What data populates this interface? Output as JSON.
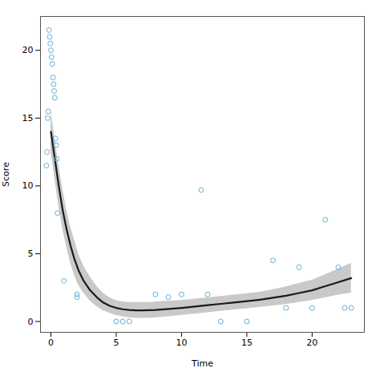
{
  "chart_data": {
    "type": "scatter",
    "xlabel": "Time",
    "ylabel": "Score",
    "xlim": [
      -0.8,
      24.0
    ],
    "ylim": [
      -0.8,
      22.5
    ],
    "xticks": [
      0,
      5,
      10,
      15,
      20
    ],
    "yticks": [
      0,
      5,
      10,
      15,
      20
    ],
    "grid": false,
    "series": [
      {
        "type": "band",
        "color": "#c0c0c0",
        "x": [
          0.0,
          0.3,
          0.6,
          0.9,
          1.2,
          1.5,
          1.8,
          2.1,
          2.5,
          3.0,
          3.5,
          4.0,
          4.5,
          5.0,
          5.5,
          6.0,
          6.5,
          7.0,
          7.5,
          8.0,
          9.0,
          10.0,
          11.0,
          12.0,
          13.0,
          14.0,
          15.0,
          16.0,
          17.0,
          18.0,
          19.0,
          20.0,
          21.0,
          22.0,
          23.0
        ],
        "lower": [
          12.5,
          10.5,
          8.5,
          6.8,
          5.5,
          4.3,
          3.4,
          2.7,
          2.1,
          1.5,
          1.1,
          0.8,
          0.6,
          0.45,
          0.35,
          0.28,
          0.24,
          0.24,
          0.25,
          0.27,
          0.35,
          0.45,
          0.55,
          0.65,
          0.75,
          0.85,
          0.95,
          1.05,
          1.15,
          1.25,
          1.4,
          1.55,
          1.75,
          1.95,
          2.1
        ],
        "upper": [
          15.5,
          13.5,
          11.5,
          9.8,
          8.2,
          7.0,
          6.0,
          5.0,
          4.1,
          3.3,
          2.6,
          2.1,
          1.75,
          1.55,
          1.45,
          1.4,
          1.4,
          1.4,
          1.4,
          1.45,
          1.5,
          1.55,
          1.65,
          1.75,
          1.85,
          1.95,
          2.05,
          2.15,
          2.35,
          2.55,
          2.8,
          3.05,
          3.45,
          3.85,
          4.3
        ]
      },
      {
        "type": "line",
        "color": "#1a1a1a",
        "line_style": "solid",
        "x": [
          0.0,
          0.3,
          0.6,
          0.9,
          1.2,
          1.5,
          1.8,
          2.1,
          2.5,
          3.0,
          3.5,
          4.0,
          4.5,
          5.0,
          5.5,
          6.0,
          6.5,
          7.0,
          7.5,
          8.0,
          9.0,
          10.0,
          11.0,
          12.0,
          13.0,
          14.0,
          15.0,
          16.0,
          17.0,
          18.0,
          19.0,
          20.0,
          21.0,
          22.0,
          23.0
        ],
        "values": [
          14.0,
          12.0,
          10.0,
          8.2,
          6.8,
          5.6,
          4.6,
          3.8,
          3.0,
          2.3,
          1.8,
          1.4,
          1.15,
          1.0,
          0.9,
          0.85,
          0.82,
          0.82,
          0.83,
          0.85,
          0.92,
          1.0,
          1.1,
          1.2,
          1.3,
          1.4,
          1.5,
          1.6,
          1.75,
          1.9,
          2.1,
          2.3,
          2.6,
          2.9,
          3.2
        ]
      },
      {
        "type": "scatter",
        "color": "#6aaed6",
        "marker": "open_circle",
        "x": [
          -0.15,
          -0.1,
          -0.05,
          0.0,
          0.05,
          0.1,
          0.15,
          0.2,
          0.25,
          0.3,
          -0.2,
          -0.25,
          0.35,
          0.4,
          -0.3,
          0.45,
          -0.35,
          0.5,
          1.0,
          2.0,
          2.0,
          5.0,
          5.5,
          6.0,
          8.0,
          9.0,
          10.0,
          11.5,
          12.0,
          13.0,
          15.0,
          17.0,
          18.0,
          19.0,
          20.0,
          21.0,
          22.0,
          22.5,
          23.0
        ],
        "values": [
          21.5,
          21.0,
          20.5,
          20.0,
          19.5,
          19.0,
          18.0,
          17.5,
          17.0,
          16.5,
          15.5,
          15.0,
          13.5,
          13.0,
          12.5,
          12.0,
          11.5,
          8.0,
          3.0,
          2.0,
          1.8,
          0.0,
          0.0,
          0.0,
          2.0,
          1.8,
          2.0,
          9.7,
          2.0,
          0.0,
          0.0,
          4.5,
          1.0,
          4.0,
          1.0,
          7.5,
          4.0,
          1.0,
          1.0
        ]
      }
    ]
  }
}
